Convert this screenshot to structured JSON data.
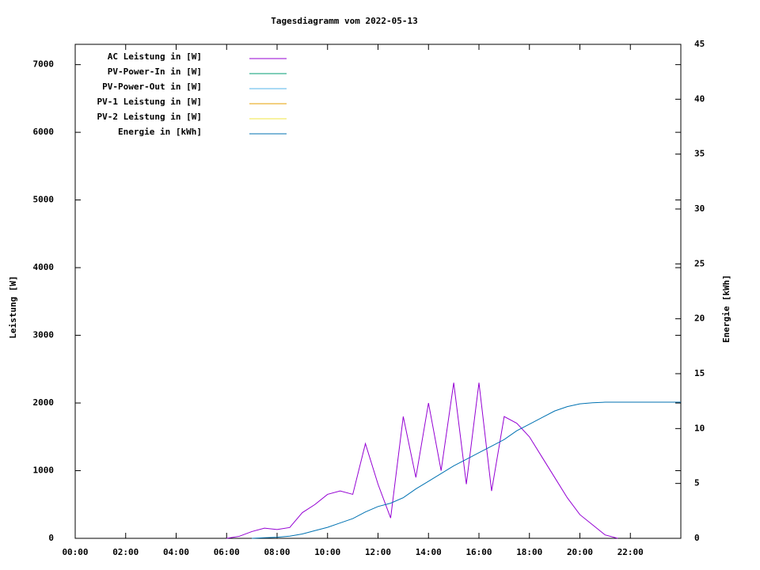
{
  "chart_data": {
    "type": "line",
    "title": "Tagesdiagramm vom 2022-05-13",
    "ylabel": "Leistung [W]",
    "y2label": "Energie [kWh]",
    "x": [
      0,
      0.5,
      1,
      1.5,
      2,
      2.5,
      3,
      3.5,
      4,
      4.5,
      5,
      5.5,
      6,
      6.5,
      7,
      7.5,
      8,
      8.5,
      9,
      9.5,
      10,
      10.5,
      11,
      11.5,
      12,
      12.5,
      13,
      13.5,
      14,
      14.5,
      15,
      15.5,
      16,
      16.5,
      17,
      17.5,
      18,
      18.5,
      19,
      19.5,
      20,
      20.5,
      21,
      21.5,
      22,
      22.5,
      23,
      23.5,
      24
    ],
    "xlim": [
      0,
      24
    ],
    "xticks": [
      {
        "value": 0,
        "label": "00:00"
      },
      {
        "value": 2,
        "label": "02:00"
      },
      {
        "value": 4,
        "label": "04:00"
      },
      {
        "value": 6,
        "label": "06:00"
      },
      {
        "value": 8,
        "label": "08:00"
      },
      {
        "value": 10,
        "label": "10:00"
      },
      {
        "value": 12,
        "label": "12:00"
      },
      {
        "value": 14,
        "label": "14:00"
      },
      {
        "value": 16,
        "label": "16:00"
      },
      {
        "value": 18,
        "label": "18:00"
      },
      {
        "value": 20,
        "label": "20:00"
      },
      {
        "value": 22,
        "label": "22:00"
      }
    ],
    "ylim": [
      0,
      7300
    ],
    "yticks": [
      0,
      1000,
      2000,
      3000,
      4000,
      5000,
      6000,
      7000
    ],
    "y2lim": [
      0,
      45
    ],
    "y2ticks": [
      0,
      5,
      10,
      15,
      20,
      25,
      30,
      35,
      40,
      45
    ],
    "legend": "top-left",
    "series": [
      {
        "name": "AC Leistung in [W]",
        "color": "#9400d3",
        "values": [
          null,
          null,
          null,
          null,
          null,
          null,
          null,
          null,
          null,
          null,
          null,
          null,
          0,
          30,
          100,
          150,
          130,
          160,
          380,
          500,
          650,
          700,
          650,
          1400,
          800,
          300,
          1800,
          900,
          2000,
          1000,
          2300,
          800,
          2300,
          700,
          1800,
          1700,
          1500,
          1200,
          900,
          600,
          350,
          200,
          50,
          0,
          null,
          null,
          null,
          null,
          null
        ]
      },
      {
        "name": "PV-Power-In in [W]",
        "color": "#009e73",
        "values": [
          null,
          null,
          null,
          null,
          null,
          null,
          null,
          null,
          null,
          null,
          null,
          null,
          null,
          null,
          null,
          null,
          null,
          null,
          null,
          null,
          null,
          null,
          null,
          null,
          null,
          null,
          null,
          null,
          null,
          null,
          null,
          null,
          null,
          null,
          null,
          null,
          null,
          null,
          null,
          null,
          null,
          null,
          null,
          null,
          null,
          null,
          null,
          null,
          null
        ]
      },
      {
        "name": "PV-Power-Out in [W]",
        "color": "#56b4e9",
        "values": [
          null,
          null,
          null,
          null,
          null,
          null,
          null,
          null,
          null,
          null,
          null,
          null,
          null,
          null,
          null,
          null,
          null,
          null,
          null,
          null,
          null,
          null,
          null,
          null,
          null,
          null,
          null,
          null,
          null,
          null,
          null,
          null,
          null,
          null,
          null,
          null,
          null,
          null,
          null,
          null,
          null,
          null,
          null,
          null,
          null,
          null,
          null,
          null,
          null
        ]
      },
      {
        "name": "PV-1 Leistung in [W]",
        "color": "#e69f00",
        "values": [
          null,
          null,
          null,
          null,
          null,
          null,
          null,
          null,
          null,
          null,
          null,
          null,
          null,
          null,
          null,
          null,
          null,
          null,
          null,
          null,
          null,
          null,
          null,
          null,
          null,
          null,
          null,
          null,
          null,
          null,
          null,
          null,
          null,
          null,
          null,
          null,
          null,
          null,
          null,
          null,
          null,
          null,
          null,
          null,
          null,
          null,
          null,
          null,
          null
        ]
      },
      {
        "name": "PV-2 Leistung in [W]",
        "color": "#f0e442",
        "values": [
          null,
          null,
          null,
          null,
          null,
          null,
          null,
          null,
          null,
          null,
          null,
          null,
          null,
          null,
          null,
          null,
          null,
          null,
          null,
          null,
          null,
          null,
          null,
          null,
          null,
          null,
          null,
          null,
          null,
          null,
          null,
          null,
          null,
          null,
          null,
          null,
          null,
          null,
          null,
          null,
          null,
          null,
          null,
          null,
          null,
          null,
          null,
          null,
          null
        ]
      },
      {
        "name": "Energie in [kWh]",
        "color": "#0072b2",
        "axis": "y2",
        "values": [
          null,
          null,
          null,
          null,
          null,
          null,
          null,
          null,
          null,
          null,
          null,
          null,
          null,
          null,
          0,
          0.05,
          0.1,
          0.2,
          0.4,
          0.7,
          1.0,
          1.4,
          1.8,
          2.4,
          2.9,
          3.2,
          3.7,
          4.5,
          5.2,
          5.9,
          6.6,
          7.2,
          7.8,
          8.4,
          9.0,
          9.8,
          10.4,
          11.0,
          11.6,
          12.0,
          12.25,
          12.35,
          12.4,
          12.4,
          12.4,
          12.4,
          12.4,
          12.4,
          12.4
        ]
      }
    ]
  }
}
